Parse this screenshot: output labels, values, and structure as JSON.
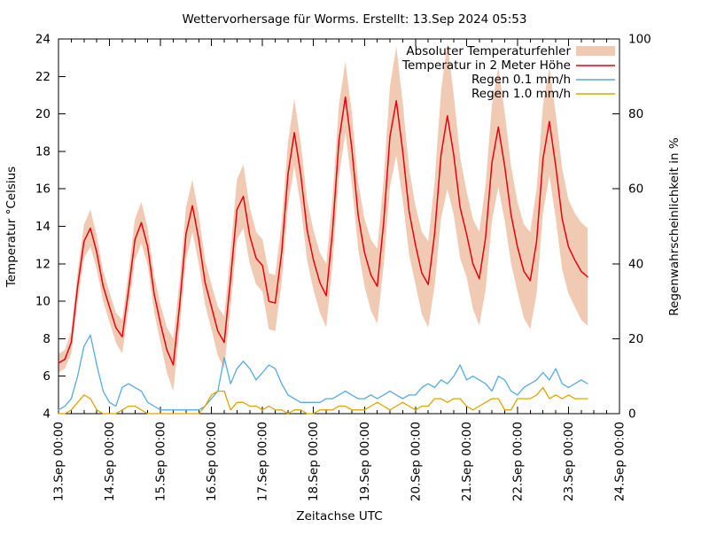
{
  "chart_data": {
    "type": "line",
    "title": "Wettervorhersage für Worms. Erstellt: 13.Sep 2024 05:53",
    "xlabel": "Zeitachse UTC",
    "ylabel_left": "Temperatur °Celsius",
    "ylabel_right": "Regenwahrscheinlichkeit in %",
    "legend_position": "top-right-inside",
    "grid": false,
    "x_tick_labels": [
      "13.Sep 00:00",
      "14.Sep 00:00",
      "15.Sep 00:00",
      "16.Sep 00:00",
      "17.Sep 00:00",
      "18.Sep 00:00",
      "19.Sep 00:00",
      "20.Sep 00:00",
      "21.Sep 00:00",
      "22.Sep 00:00",
      "23.Sep 00:00",
      "24.Sep 00:00"
    ],
    "x_total_hours": 264,
    "x_minor_tick_hours": 6,
    "ylim_left": [
      4,
      24
    ],
    "yticks_left": [
      4,
      6,
      8,
      10,
      12,
      14,
      16,
      18,
      20,
      22,
      24
    ],
    "ylim_right": [
      0,
      100
    ],
    "yticks_right": [
      0,
      20,
      40,
      60,
      80,
      100
    ],
    "time_hours": [
      0,
      3,
      6,
      9,
      12,
      15,
      18,
      21,
      24,
      27,
      30,
      33,
      36,
      39,
      42,
      45,
      48,
      51,
      54,
      57,
      60,
      63,
      66,
      69,
      72,
      75,
      78,
      81,
      84,
      87,
      90,
      93,
      96,
      99,
      102,
      105,
      108,
      111,
      114,
      117,
      120,
      123,
      126,
      129,
      132,
      135,
      138,
      141,
      144,
      147,
      150,
      153,
      156,
      159,
      162,
      165,
      168,
      171,
      174,
      177,
      180,
      183,
      186,
      189,
      192,
      195,
      198,
      201,
      204,
      207,
      210,
      213,
      216,
      219,
      222,
      225,
      228,
      231,
      234,
      237,
      240,
      243,
      246,
      249
    ],
    "series": [
      {
        "name": "error_band",
        "label": "Absoluter Temperaturfehler",
        "style": "band",
        "axis": "left",
        "color": "#f1cab4",
        "half_width": [
          0.5,
          0.5,
          0.6,
          0.8,
          0.9,
          1.0,
          0.9,
          0.8,
          0.8,
          0.8,
          0.9,
          1.0,
          1.1,
          1.1,
          1.0,
          1.0,
          1.0,
          1.2,
          1.4,
          1.3,
          1.4,
          1.4,
          1.3,
          1.2,
          1.2,
          1.3,
          1.4,
          1.5,
          1.6,
          1.7,
          1.5,
          1.4,
          1.4,
          1.5,
          1.5,
          1.6,
          1.7,
          1.8,
          1.7,
          1.6,
          1.6,
          1.6,
          1.7,
          1.8,
          1.9,
          1.9,
          1.9,
          1.8,
          1.8,
          1.9,
          2.0,
          2.3,
          2.7,
          2.9,
          2.6,
          2.3,
          2.1,
          2.2,
          2.3,
          2.8,
          3.4,
          3.9,
          3.2,
          2.7,
          2.3,
          2.4,
          2.5,
          2.8,
          3.1,
          3.2,
          2.9,
          2.6,
          2.4,
          2.5,
          2.6,
          2.8,
          2.9,
          2.9,
          2.8,
          2.7,
          2.5,
          2.5,
          2.6,
          2.6
        ]
      },
      {
        "name": "temperature_2m",
        "label": "Temperatur in 2 Meter Höhe",
        "style": "line",
        "axis": "left",
        "color": "#e8000d",
        "values": [
          6.7,
          6.9,
          7.8,
          10.8,
          13.2,
          13.9,
          12.6,
          10.8,
          9.7,
          8.6,
          8.1,
          10.6,
          13.3,
          14.2,
          12.9,
          10.4,
          8.8,
          7.4,
          6.6,
          9.8,
          13.6,
          15.1,
          13.3,
          11.0,
          9.7,
          8.4,
          7.8,
          11.2,
          14.9,
          15.6,
          13.5,
          12.3,
          11.9,
          10.0,
          9.9,
          12.6,
          16.8,
          19.0,
          16.8,
          13.8,
          12.2,
          11.0,
          10.3,
          13.8,
          18.6,
          20.9,
          18.2,
          14.6,
          12.6,
          11.4,
          10.8,
          14.2,
          18.8,
          20.7,
          18.0,
          14.8,
          13.0,
          11.5,
          10.9,
          13.6,
          17.8,
          19.9,
          17.8,
          15.0,
          13.6,
          12.0,
          11.2,
          13.4,
          17.4,
          19.3,
          17.2,
          14.6,
          12.9,
          11.6,
          11.1,
          13.2,
          17.6,
          19.6,
          17.2,
          14.4,
          12.9,
          12.2,
          11.6,
          11.3
        ]
      },
      {
        "name": "rain_01_mmh",
        "label": "Regen 0.1 mm/h",
        "style": "line",
        "axis": "right",
        "color": "#56abe0",
        "values": [
          1,
          2,
          4,
          10,
          18,
          21,
          13,
          6,
          3,
          2,
          7,
          8,
          7,
          6,
          3,
          2,
          1,
          1,
          1,
          1,
          1,
          1,
          1,
          2,
          4,
          6,
          15,
          8,
          12,
          14,
          12,
          9,
          11,
          13,
          12,
          8,
          5,
          4,
          3,
          3,
          3,
          3,
          4,
          4,
          5,
          6,
          5,
          4,
          4,
          5,
          4,
          5,
          6,
          5,
          4,
          5,
          5,
          7,
          8,
          7,
          9,
          8,
          10,
          13,
          9,
          10,
          9,
          8,
          6,
          10,
          9,
          6,
          5,
          7,
          8,
          9,
          11,
          9,
          12,
          8,
          7,
          8,
          9,
          8
        ]
      },
      {
        "name": "rain_10_mmh",
        "label": "Regen 1.0 mm/h",
        "style": "line",
        "axis": "right",
        "color": "#dfa400",
        "values": [
          0,
          0,
          1,
          3,
          5,
          4,
          1,
          0,
          0,
          0,
          1,
          2,
          2,
          1,
          0,
          0,
          0,
          0,
          0,
          0,
          0,
          0,
          0,
          2,
          5,
          6,
          6,
          1,
          3,
          3,
          2,
          2,
          1,
          2,
          1,
          1,
          0,
          1,
          1,
          0,
          0,
          1,
          1,
          1,
          2,
          2,
          1,
          1,
          1,
          2,
          3,
          2,
          1,
          2,
          3,
          2,
          1,
          2,
          2,
          4,
          4,
          3,
          4,
          4,
          2,
          1,
          2,
          3,
          4,
          4,
          1,
          1,
          4,
          4,
          4,
          5,
          7,
          4,
          5,
          4,
          5,
          4,
          4,
          4
        ]
      }
    ]
  }
}
